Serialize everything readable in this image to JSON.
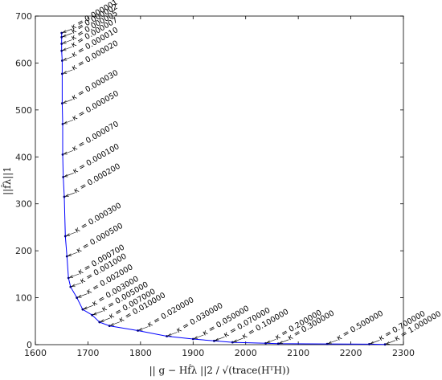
{
  "chart_data": {
    "type": "line",
    "xlabel": "|| g − Hf̂λ ||2 / √(trace(HᵀH))",
    "ylabel": "||f̂λ||1",
    "xlim": [
      1600,
      2300
    ],
    "ylim": [
      0,
      700
    ],
    "x_ticks": [
      1600,
      1700,
      1800,
      1900,
      2000,
      2100,
      2200,
      2300
    ],
    "y_ticks": [
      0,
      100,
      200,
      300,
      400,
      500,
      600,
      700
    ],
    "x_tick_labels": [
      "1600",
      "1700",
      "1800",
      "1900",
      "2000",
      "2100",
      "2200",
      "2300"
    ],
    "y_tick_labels": [
      "0",
      "100",
      "200",
      "300",
      "400",
      "500",
      "600",
      "700"
    ],
    "line_color": "#0000ff",
    "marker_color": "#000080",
    "grid": false,
    "annotation_prefix": "κ = ",
    "points": [
      {
        "kappa": "0.000001",
        "x": 1650,
        "y": 664
      },
      {
        "kappa": "0.000002",
        "x": 1650,
        "y": 655
      },
      {
        "kappa": "0.000005",
        "x": 1650,
        "y": 641
      },
      {
        "kappa": "0.000007",
        "x": 1650,
        "y": 626
      },
      {
        "kappa": "0.000010",
        "x": 1651,
        "y": 605
      },
      {
        "kappa": "0.000020",
        "x": 1651,
        "y": 577
      },
      {
        "kappa": "0.000030",
        "x": 1651,
        "y": 514
      },
      {
        "kappa": "0.000050",
        "x": 1652,
        "y": 470
      },
      {
        "kappa": "0.000070",
        "x": 1652,
        "y": 405
      },
      {
        "kappa": "0.000100",
        "x": 1653,
        "y": 357
      },
      {
        "kappa": "0.000200",
        "x": 1655,
        "y": 315
      },
      {
        "kappa": "0.000300",
        "x": 1657,
        "y": 231
      },
      {
        "kappa": "0.000500",
        "x": 1660,
        "y": 188
      },
      {
        "kappa": "0.000700",
        "x": 1663,
        "y": 142
      },
      {
        "kappa": "0.001000",
        "x": 1667,
        "y": 123
      },
      {
        "kappa": "0.002000",
        "x": 1679,
        "y": 100
      },
      {
        "kappa": "0.003000",
        "x": 1690,
        "y": 75
      },
      {
        "kappa": "0.005000",
        "x": 1708,
        "y": 63
      },
      {
        "kappa": "0.007000",
        "x": 1722,
        "y": 48
      },
      {
        "kappa": "0.010000",
        "x": 1741,
        "y": 40
      },
      {
        "kappa": "0.020000",
        "x": 1795,
        "y": 30
      },
      {
        "kappa": "0.030000",
        "x": 1850,
        "y": 18
      },
      {
        "kappa": "0.050000",
        "x": 1900,
        "y": 12
      },
      {
        "kappa": "0.070000",
        "x": 1940,
        "y": 8
      },
      {
        "kappa": "0.100000",
        "x": 1975,
        "y": 5
      },
      {
        "kappa": "0.200000",
        "x": 2038,
        "y": 3
      },
      {
        "kappa": "0.300000",
        "x": 2062,
        "y": 2
      },
      {
        "kappa": "0.500000",
        "x": 2155,
        "y": 1.5
      },
      {
        "kappa": "0.700000",
        "x": 2235,
        "y": 1
      },
      {
        "kappa": "1.000000",
        "x": 2265,
        "y": 0.5
      }
    ]
  }
}
